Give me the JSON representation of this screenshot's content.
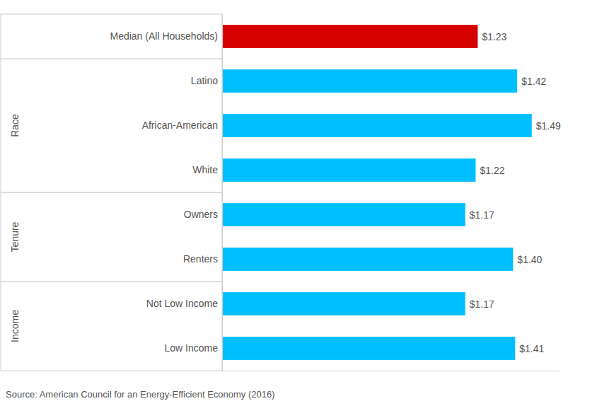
{
  "chart_data": {
    "type": "bar",
    "orientation": "horizontal",
    "categories": [
      "Low Income",
      "Not Low Income",
      "Renters",
      "Owners",
      "White",
      "African-American",
      "Latino",
      "Median (All Households)"
    ],
    "values": [
      1.41,
      1.17,
      1.4,
      1.17,
      1.22,
      1.49,
      1.42,
      1.23
    ],
    "value_labels": [
      "$1.41",
      "$1.17",
      "$1.40",
      "$1.17",
      "$1.22",
      "$1.49",
      "$1.42",
      "$1.23"
    ],
    "colors": [
      "#00BFFF",
      "#00BFFF",
      "#00BFFF",
      "#00BFFF",
      "#00BFFF",
      "#00BFFF",
      "#00BFFF",
      "#d40000"
    ],
    "data_labels": true,
    "tick_labels": "y",
    "grid": false,
    "xlim": [
      0,
      1.62
    ],
    "groups": [
      {
        "label": "Income",
        "categories": [
          "Low Income",
          "Not Low Income"
        ]
      },
      {
        "label": "Tenure",
        "categories": [
          "Renters",
          "Owners"
        ]
      },
      {
        "label": "Race",
        "categories": [
          "White",
          "African-American",
          "Latino"
        ]
      }
    ],
    "annotations": [
      "Source: American Council for an Energy-Efficient Economy (2016)"
    ]
  }
}
